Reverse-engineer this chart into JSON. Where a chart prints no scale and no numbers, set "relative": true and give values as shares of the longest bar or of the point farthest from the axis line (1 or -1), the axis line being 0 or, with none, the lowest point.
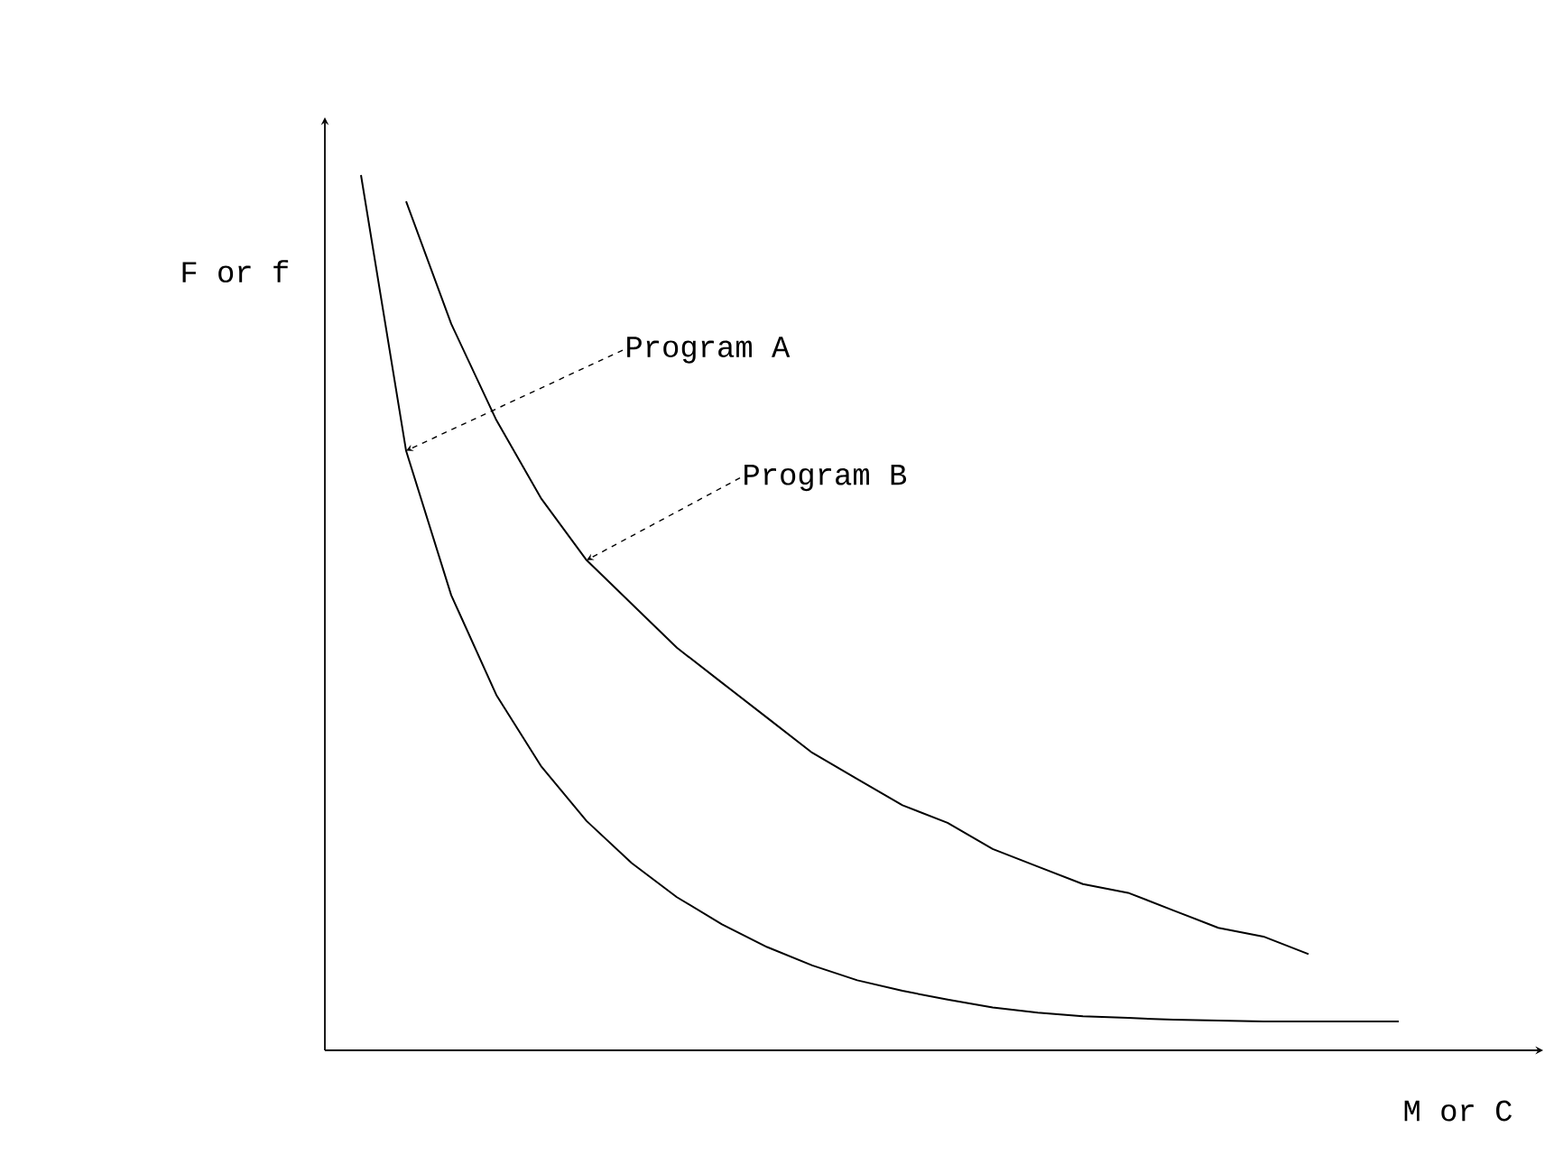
{
  "chart_data": {
    "type": "line",
    "relative": true,
    "xlabel": "M or C",
    "ylabel": "F or f",
    "line_style": "solid",
    "categories": [
      null,
      null,
      null,
      null,
      null,
      null,
      null,
      null,
      null,
      null,
      null,
      null,
      null,
      null,
      null,
      null,
      null,
      null,
      null,
      null,
      null,
      null,
      null,
      null
    ],
    "series": [
      {
        "color": "#000000",
        "values": [
          1,
          0.685,
          0.52,
          0.406,
          0.324,
          0.262,
          0.214,
          0.175,
          0.144,
          0.118,
          0.097,
          0.08,
          0.068,
          0.058,
          0.049,
          0.043,
          0.039,
          0.037,
          0.035,
          0.034,
          0.033,
          0.033,
          0.033,
          0.033
        ]
      },
      {
        "color": "#000000",
        "values": [
          null,
          0.97,
          0.83,
          0.72,
          0.63,
          0.56,
          0.51,
          0.46,
          0.42,
          0.38,
          0.34,
          0.31,
          0.28,
          0.26,
          0.23,
          0.21,
          0.19,
          0.18,
          0.16,
          0.14,
          0.13,
          0.11,
          null,
          null
        ]
      }
    ],
    "annotations": [
      "Program A",
      "Program B"
    ]
  }
}
